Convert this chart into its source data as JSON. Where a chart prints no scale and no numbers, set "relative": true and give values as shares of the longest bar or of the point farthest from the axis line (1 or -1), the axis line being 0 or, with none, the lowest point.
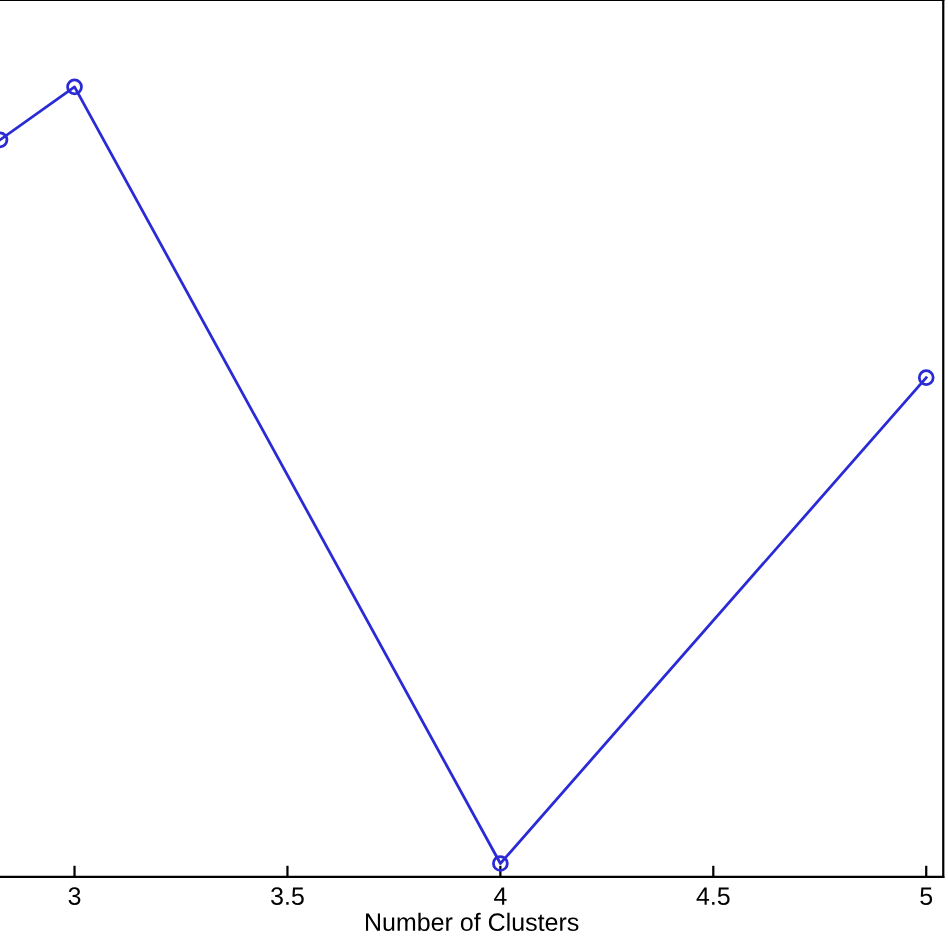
{
  "chart_data": {
    "type": "line",
    "xlabel": "Number of Clusters",
    "relative": true,
    "series": [
      {
        "color": "#2b2bd6",
        "x": [
          2.825,
          3,
          4,
          5
        ],
        "values": [
          0.933,
          1,
          0.017,
          0.632
        ]
      }
    ],
    "xlim": [
      2.825,
      5.04
    ],
    "xticks": [
      3,
      3.5,
      4,
      4.5,
      5
    ],
    "marker": "circle",
    "line_style": "solid",
    "grid": false,
    "legend": false
  }
}
